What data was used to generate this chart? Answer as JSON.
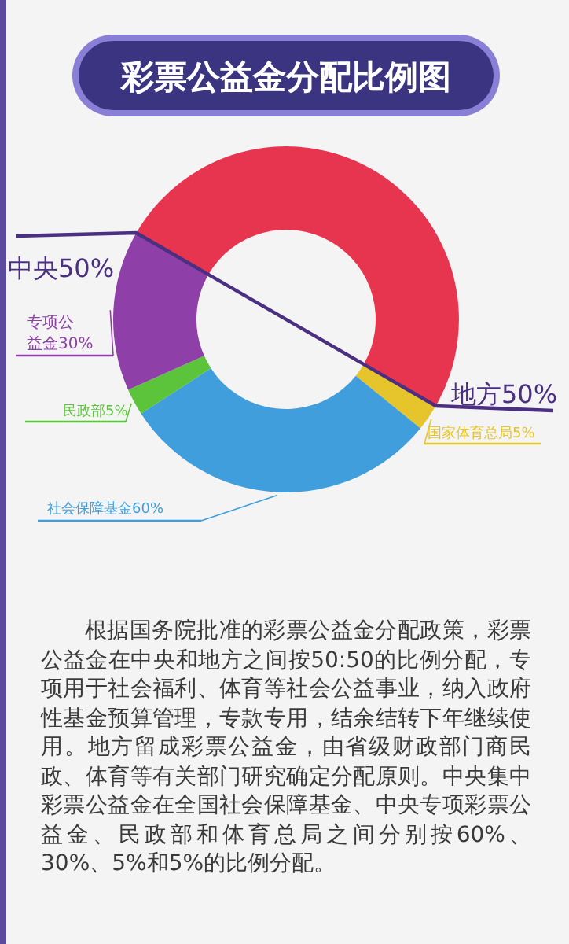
{
  "chart_data": {
    "type": "donut",
    "title": "彩票公益金分配比例图",
    "categories": [
      "地方50%",
      "国家体育总局5%",
      "社会保障基金60%",
      "民政部5%",
      "专项公益金30%"
    ],
    "values": [
      50,
      2.5,
      30,
      2.5,
      15
    ],
    "colors": [
      "#e8354f",
      "#e6c52c",
      "#3f9edb",
      "#5cc43a",
      "#8e40a8"
    ],
    "annotations": [
      "中央50%",
      "根据国务院批准的彩票公益金分配政策，彩票公益金在中央和地方之间按50:50的比例分配，专项用于社会福利、体育等社会公益事业，纳入政府性基金预算管理，专款专用，结余结转下年继续使用。地方留成彩票公益金，由省级财政部门商民政、体育等有关部门研究确定分配原则。中央集中彩票公益金在全国社会保障基金、中央专项彩票公益金、民政部和体育总局之间分别按60%、30%、5%和5%的比例分配。"
    ]
  }
}
